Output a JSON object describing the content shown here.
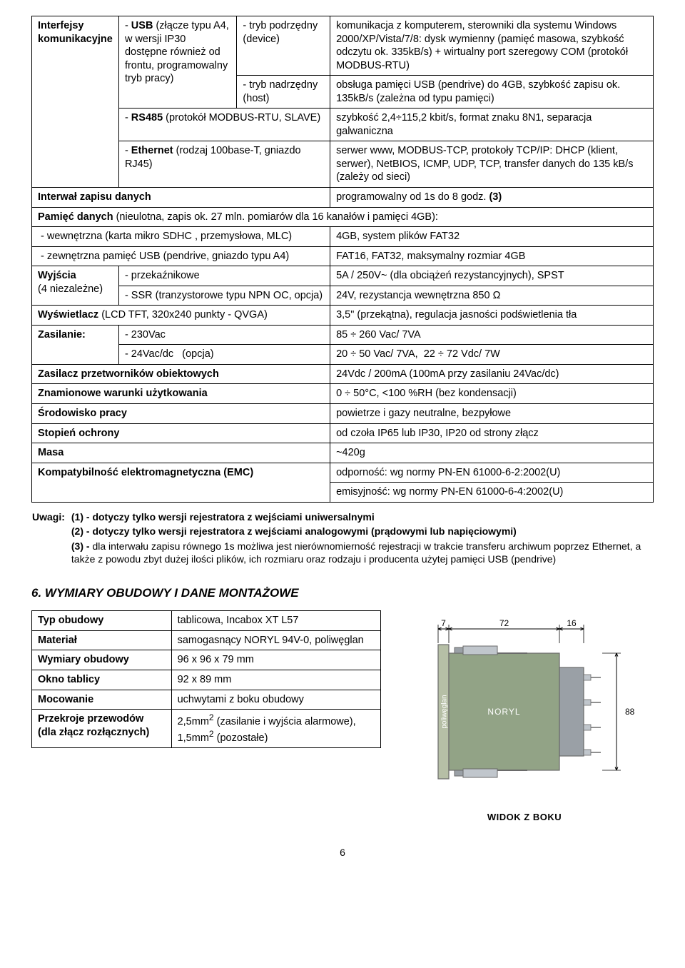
{
  "specTable": {
    "rows": [
      {
        "cells": [
          {
            "html": "<span class='b'>Interfejsy komunikacyjne</span>",
            "rowspan": 4,
            "width": "14%"
          },
          {
            "html": "- <span class='b'>USB</span> (złącze typu A4, w wersji IP30 dostępne również od frontu, programowalny tryb pracy)",
            "rowspan": 2,
            "width": "19%"
          },
          {
            "html": "- tryb podrzędny (device)",
            "width": "15%"
          },
          {
            "html": "komunikacja z komputerem, sterowniki dla systemu Windows 2000/XP/Vista/7/8: dysk wymienny (pamięć masowa, szybkość odczytu ok. 335kB/s) + wirtualny port szeregowy COM (protokół MODBUS-RTU)"
          }
        ]
      },
      {
        "cells": [
          {
            "html": "- tryb nadrzędny (host)"
          },
          {
            "html": "obsługa pamięci USB (pendrive) do 4GB, szybkość zapisu ok. 135kB/s (zależna od typu pamięci)"
          }
        ]
      },
      {
        "cells": [
          {
            "html": "- <span class='b'>RS485</span> (protokół MODBUS-RTU, SLAVE)",
            "colspan": 2
          },
          {
            "html": "szybkość 2,4÷115,2 kbit/s, format znaku 8N1, separacja galwaniczna"
          }
        ]
      },
      {
        "cells": [
          {
            "html": "- <span class='b'>Ethernet</span> (rodzaj 100base-T, gniazdo RJ45)",
            "colspan": 2
          },
          {
            "html": "serwer www, MODBUS-TCP, protokoły TCP/IP: DHCP (klient, serwer),  NetBIOS, ICMP, UDP, TCP, transfer danych do 135 kB/s (zależy od sieci)"
          }
        ]
      },
      {
        "cells": [
          {
            "html": "<span class='b'>Interwał zapisu danych</span>",
            "colspan": 3
          },
          {
            "html": "programowalny od 1s do 8 godz. <span class='b'>(3)</span>"
          }
        ]
      },
      {
        "cells": [
          {
            "html": "<span class='b'>Pamięć danych</span> (nieulotna, zapis ok. 27 mln. pomiarów dla 16 kanałów i pamięci 4GB):",
            "colspan": 4
          }
        ]
      },
      {
        "cells": [
          {
            "html": "&nbsp;- wewnętrzna (karta mikro SDHC , przemysłowa, MLC)",
            "colspan": 3
          },
          {
            "html": "4GB, system plików FAT32"
          }
        ]
      },
      {
        "cells": [
          {
            "html": "&nbsp;- zewnętrzna pamięć USB (pendrive, gniazdo typu A4)",
            "colspan": 3
          },
          {
            "html": "FAT16, FAT32, maksymalny rozmiar 4GB"
          }
        ]
      },
      {
        "cells": [
          {
            "html": "<span class='b'>Wyjścia</span><br>(4 niezależne)",
            "rowspan": 2
          },
          {
            "html": "- przekaźnikowe",
            "colspan": 2
          },
          {
            "html": "5A / 250V~ (dla obciążeń rezystancyjnych), SPST"
          }
        ]
      },
      {
        "cells": [
          {
            "html": "- SSR (tranzystorowe typu NPN OC, opcja)",
            "colspan": 2
          },
          {
            "html": "24V, rezystancja wewnętrzna 850 Ω"
          }
        ]
      },
      {
        "cells": [
          {
            "html": "<span class='b'>Wyświetlacz</span> (LCD TFT, 320x240 punkty - QVGA)",
            "colspan": 3
          },
          {
            "html": "3,5\" (przekątna), regulacja jasności podświetlenia tła"
          }
        ]
      },
      {
        "cells": [
          {
            "html": "<span class='b'>Zasilanie:</span>",
            "rowspan": 2
          },
          {
            "html": "- 230Vac",
            "colspan": 2
          },
          {
            "html": "85 ÷ 260 Vac/ 7VA"
          }
        ]
      },
      {
        "cells": [
          {
            "html": "- 24Vac/dc &nbsp;&nbsp;(opcja)",
            "colspan": 2
          },
          {
            "html": "20 ÷ 50 Vac/ 7VA,&nbsp; 22 ÷ 72 Vdc/ 7W"
          }
        ]
      },
      {
        "cells": [
          {
            "html": "<span class='b'>Zasilacz przetworników obiektowych</span>",
            "colspan": 3
          },
          {
            "html": "24Vdc / 200mA (100mA przy zasilaniu 24Vac/dc)"
          }
        ]
      },
      {
        "cells": [
          {
            "html": "<span class='b'>Znamionowe warunki użytkowania</span>",
            "colspan": 3
          },
          {
            "html": "0 ÷ 50°C, &lt;100 %RH (bez kondensacji)"
          }
        ]
      },
      {
        "cells": [
          {
            "html": "<span class='b'>Środowisko pracy</span>",
            "colspan": 3
          },
          {
            "html": "powietrze i gazy neutralne, bezpyłowe"
          }
        ]
      },
      {
        "cells": [
          {
            "html": "<span class='b'>Stopień ochrony</span>",
            "colspan": 3
          },
          {
            "html": "od czoła IP65 lub IP30, IP20 od strony złącz"
          }
        ]
      },
      {
        "cells": [
          {
            "html": "<span class='b'>Masa</span>",
            "colspan": 3
          },
          {
            "html": "~420g"
          }
        ]
      },
      {
        "cells": [
          {
            "html": "<span class='b'>Kompatybilność elektromagnetyczna (EMC)</span>",
            "colspan": 3,
            "rowspan": 2
          },
          {
            "html": "odporność: wg normy PN-EN 61000-6-2:2002(U)"
          }
        ]
      },
      {
        "cells": [
          {
            "html": "emisyjność: wg normy PN-EN 61000-6-4:2002(U)"
          }
        ]
      }
    ]
  },
  "notes": {
    "label": "Uwagi:",
    "items": [
      "(1) -  dotyczy tylko wersji rejestratora z wejściami uniwersalnymi",
      "(2) -  dotyczy tylko wersji rejestratora z wejściami analogowymi (prądowymi lub napięciowymi)",
      "(3) - dla interwału zapisu równego 1s możliwa jest nierównomierność rejestracji w trakcie transferu archiwum poprzez Ethernet, a także z powodu zbyt dużej ilości plików, ich rozmiaru oraz rodzaju i producenta użytej pamięci USB (pendrive)"
    ]
  },
  "section6": {
    "title": "6. WYMIARY OBUDOWY I DANE  MONTAŻOWE"
  },
  "housing": {
    "rows": [
      [
        "Typ obudowy",
        "tablicowa, Incabox XT L57"
      ],
      [
        "Materiał",
        "samogasnący NORYL 94V-0, poliwęglan"
      ],
      [
        "Wymiary obudowy",
        "96 x 96 x 79 mm"
      ],
      [
        "Okno tablicy",
        "92 x 89 mm"
      ],
      [
        "Mocowanie",
        "uchwytami z boku obudowy"
      ],
      [
        "Przekroje przewodów\n(dla złącz rozłącznych)",
        "2,5mm² (zasilanie i wyjścia alarmowe),\n1,5mm² (pozostałe)"
      ]
    ]
  },
  "diagram": {
    "dims": {
      "a": "7",
      "b": "72",
      "c": "16",
      "h": "88"
    },
    "labels": {
      "noryl": "NORYL",
      "poli": "poliwęglan"
    },
    "caption": "WIDOK Z  BOKU",
    "colors": {
      "panel": "#b6bfa6",
      "panelStroke": "#6a6a6a",
      "body": "#92a386",
      "bodyStroke": "#6a6a6a",
      "conn": "#9aa0a6",
      "connLight": "#c0c6cc",
      "dimLine": "#000"
    }
  },
  "pageNumber": "6"
}
